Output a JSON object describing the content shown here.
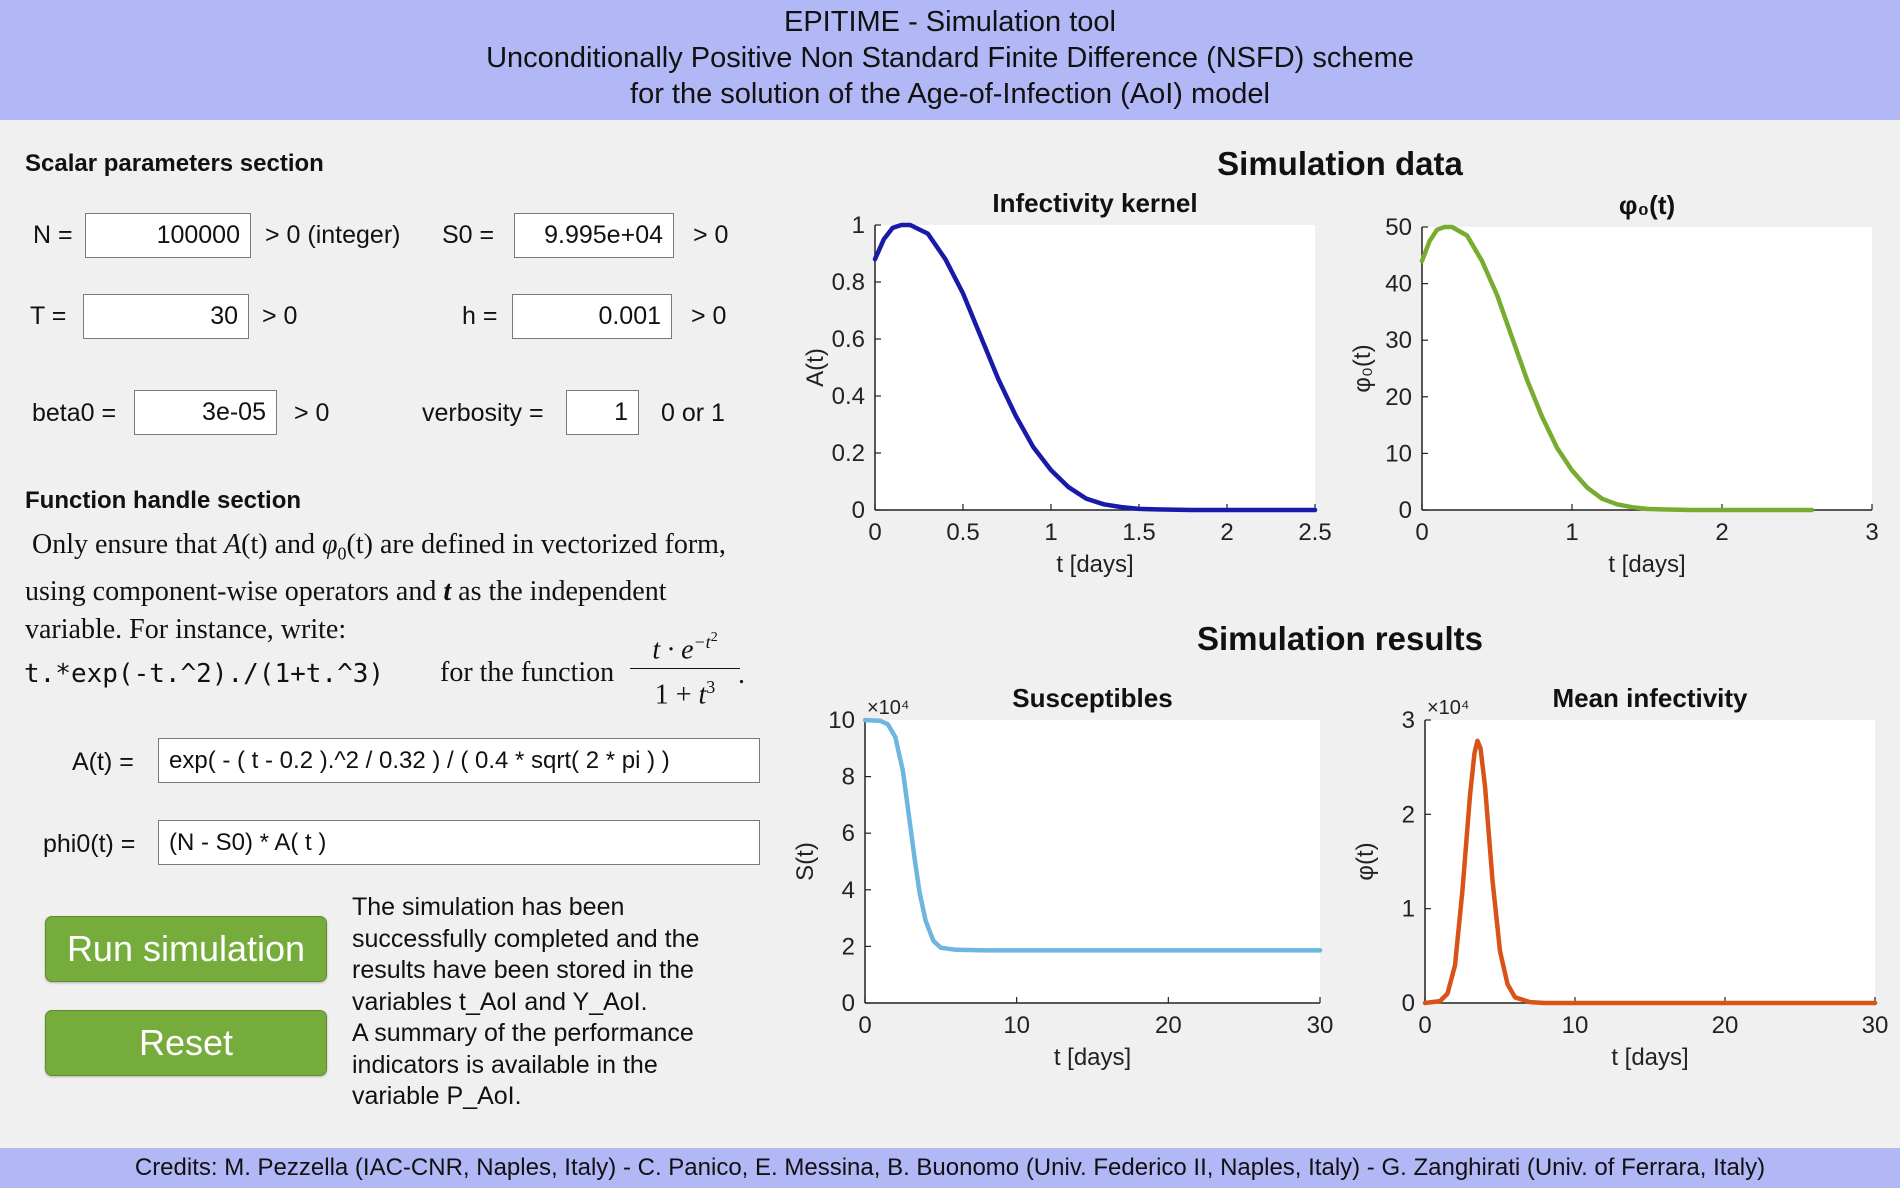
{
  "header": {
    "line1": "EPITIME - Simulation tool",
    "line2": "Unconditionally Positive Non Standard Finite Difference (NSFD) scheme",
    "line3": "for the solution of the Age-of-Infection (AoI) model"
  },
  "scalar_section": {
    "title": "Scalar parameters section",
    "N": {
      "label": "N =",
      "value": "100000",
      "hint": "> 0 (integer)"
    },
    "S0": {
      "label": "S0 =",
      "value": "9.995e+04",
      "hint": "> 0"
    },
    "T": {
      "label": "T =",
      "value": "30",
      "hint": "> 0"
    },
    "h": {
      "label": "h =",
      "value": "0.001",
      "hint": "> 0"
    },
    "beta0": {
      "label": "beta0 =",
      "value": "3e-05",
      "hint": "> 0"
    },
    "verbosity": {
      "label": "verbosity =",
      "value": "1",
      "hint": "0 or 1"
    }
  },
  "function_section": {
    "title": "Function handle section",
    "desc_line1_a": "Only ensure that ",
    "desc_line1_A": "A",
    "desc_line1_t1": "(t)",
    "desc_line1_and": " and ",
    "desc_line1_phi": "φ",
    "desc_line1_sub0": "0",
    "desc_line1_t2": "(t)",
    "desc_line1_b": " are defined in vectorized form,",
    "desc_line2_a": "using component-wise operators and ",
    "desc_line2_t": "t",
    "desc_line2_b": " as the independent",
    "desc_line3": "variable. For instance, write:",
    "example_code": "t.*exp(-t.^2)./(1+t.^3)",
    "example_for": "for the function",
    "frac_num_t": "t · e",
    "frac_num_exp": "−t",
    "frac_num_exp_sup": "2",
    "frac_den": "1 + t",
    "frac_den_sup": "3",
    "frac_period": ".",
    "A_label": "A(t) =",
    "A_value": "exp( - ( t - 0.2 ).^2 / 0.32 ) / ( 0.4 * sqrt( 2 * pi ) )",
    "phi0_label": "phi0(t) =",
    "phi0_value": "(N - S0) * A( t )"
  },
  "buttons": {
    "run": "Run simulation",
    "reset": "Reset"
  },
  "status_lines": [
    "The simulation has been",
    "successfully completed and the",
    "results have been stored in the",
    "variables t_AoI and Y_AoI.",
    "A summary of the performance",
    "indicators is available in the",
    "variable P_AoI."
  ],
  "simulation_data_title": "Simulation data",
  "simulation_results_title": "Simulation results",
  "footer": "Credits: M. Pezzella (IAC-CNR, Naples, Italy) - C. Panico, E. Messina, B. Buonomo (Univ. Federico II, Naples, Italy) - G. Zanghirati (Univ. of Ferrara, Italy)",
  "chart_data": [
    {
      "type": "line",
      "title": "Infectivity kernel",
      "xlabel": "t [days]",
      "ylabel": "A(t)",
      "xlim": [
        0,
        2.5
      ],
      "ylim": [
        0,
        1
      ],
      "xticks": [
        0,
        0.5,
        1,
        1.5,
        2,
        2.5
      ],
      "xtick_labels": [
        "0",
        "0.5",
        "1",
        "1.5",
        "2",
        "2.5"
      ],
      "yticks": [
        0,
        0.2,
        0.4,
        0.6,
        0.8,
        1
      ],
      "ytick_labels": [
        "0",
        "0.2",
        "0.4",
        "0.6",
        "0.8",
        "1"
      ],
      "color": "#1a1aa8",
      "scale_label": "",
      "series": [
        {
          "x": [
            0,
            0.05,
            0.1,
            0.15,
            0.2,
            0.3,
            0.4,
            0.5,
            0.6,
            0.7,
            0.8,
            0.9,
            1.0,
            1.1,
            1.2,
            1.3,
            1.4,
            1.5,
            1.6,
            1.8,
            2.0,
            2.2,
            2.4,
            2.5
          ],
          "y": [
            0.88,
            0.95,
            0.99,
            1.0,
            1.0,
            0.97,
            0.88,
            0.76,
            0.61,
            0.46,
            0.33,
            0.22,
            0.14,
            0.08,
            0.04,
            0.02,
            0.01,
            0.004,
            0.002,
            0,
            0,
            0,
            0,
            0
          ]
        }
      ]
    },
    {
      "type": "line",
      "title": "φ₀(t)",
      "xlabel": "t [days]",
      "ylabel": "φ₀(t)",
      "xlim": [
        0,
        3
      ],
      "ylim": [
        0,
        50
      ],
      "xticks": [
        0,
        1,
        2,
        3
      ],
      "xtick_labels": [
        "0",
        "1",
        "2",
        "3"
      ],
      "yticks": [
        0,
        10,
        20,
        30,
        40,
        50
      ],
      "ytick_labels": [
        "0",
        "10",
        "20",
        "30",
        "40",
        "50"
      ],
      "color": "#77ac30",
      "scale_label": "",
      "series": [
        {
          "x": [
            0,
            0.05,
            0.1,
            0.15,
            0.2,
            0.3,
            0.4,
            0.5,
            0.6,
            0.7,
            0.8,
            0.9,
            1.0,
            1.1,
            1.2,
            1.3,
            1.4,
            1.5,
            1.6,
            1.8,
            2.0,
            2.2,
            2.4,
            2.6
          ],
          "y": [
            44,
            47.5,
            49.5,
            50,
            50,
            48.5,
            44,
            38,
            30.5,
            23,
            16.5,
            11,
            7,
            4,
            2,
            1,
            0.5,
            0.2,
            0.1,
            0,
            0,
            0,
            0,
            0
          ]
        }
      ]
    },
    {
      "type": "line",
      "title": "Susceptibles",
      "xlabel": "t [days]",
      "ylabel": "S(t)",
      "xlim": [
        0,
        30
      ],
      "ylim": [
        0,
        10
      ],
      "xticks": [
        0,
        10,
        20,
        30
      ],
      "xtick_labels": [
        "0",
        "10",
        "20",
        "30"
      ],
      "yticks": [
        0,
        2,
        4,
        6,
        8,
        10
      ],
      "ytick_labels": [
        "0",
        "2",
        "4",
        "6",
        "8",
        "10"
      ],
      "color": "#6cb6e0",
      "scale_label": "×10⁴",
      "series": [
        {
          "x": [
            0,
            1,
            1.5,
            2,
            2.5,
            3,
            3.3,
            3.6,
            4,
            4.5,
            5,
            6,
            8,
            10,
            15,
            20,
            25,
            30
          ],
          "y": [
            9.995,
            9.97,
            9.85,
            9.4,
            8.2,
            6.2,
            5.0,
            3.9,
            2.9,
            2.2,
            1.95,
            1.88,
            1.86,
            1.86,
            1.86,
            1.86,
            1.86,
            1.86
          ]
        }
      ]
    },
    {
      "type": "line",
      "title": "Mean infectivity",
      "xlabel": "t [days]",
      "ylabel": "φ(t)",
      "xlim": [
        0,
        30
      ],
      "ylim": [
        0,
        3
      ],
      "xticks": [
        0,
        10,
        20,
        30
      ],
      "xtick_labels": [
        "0",
        "10",
        "20",
        "30"
      ],
      "yticks": [
        0,
        1,
        2,
        3
      ],
      "ytick_labels": [
        "0",
        "1",
        "2",
        "3"
      ],
      "color": "#d95319",
      "scale_label": "×10⁴",
      "series": [
        {
          "x": [
            0,
            1,
            1.5,
            2,
            2.5,
            3,
            3.3,
            3.5,
            3.7,
            4,
            4.5,
            5,
            5.5,
            6,
            7,
            8,
            10,
            15,
            20,
            25,
            30
          ],
          "y": [
            0.0,
            0.02,
            0.1,
            0.4,
            1.2,
            2.2,
            2.65,
            2.78,
            2.7,
            2.3,
            1.3,
            0.55,
            0.2,
            0.06,
            0.01,
            0,
            0,
            0,
            0,
            0,
            0
          ]
        }
      ]
    }
  ]
}
